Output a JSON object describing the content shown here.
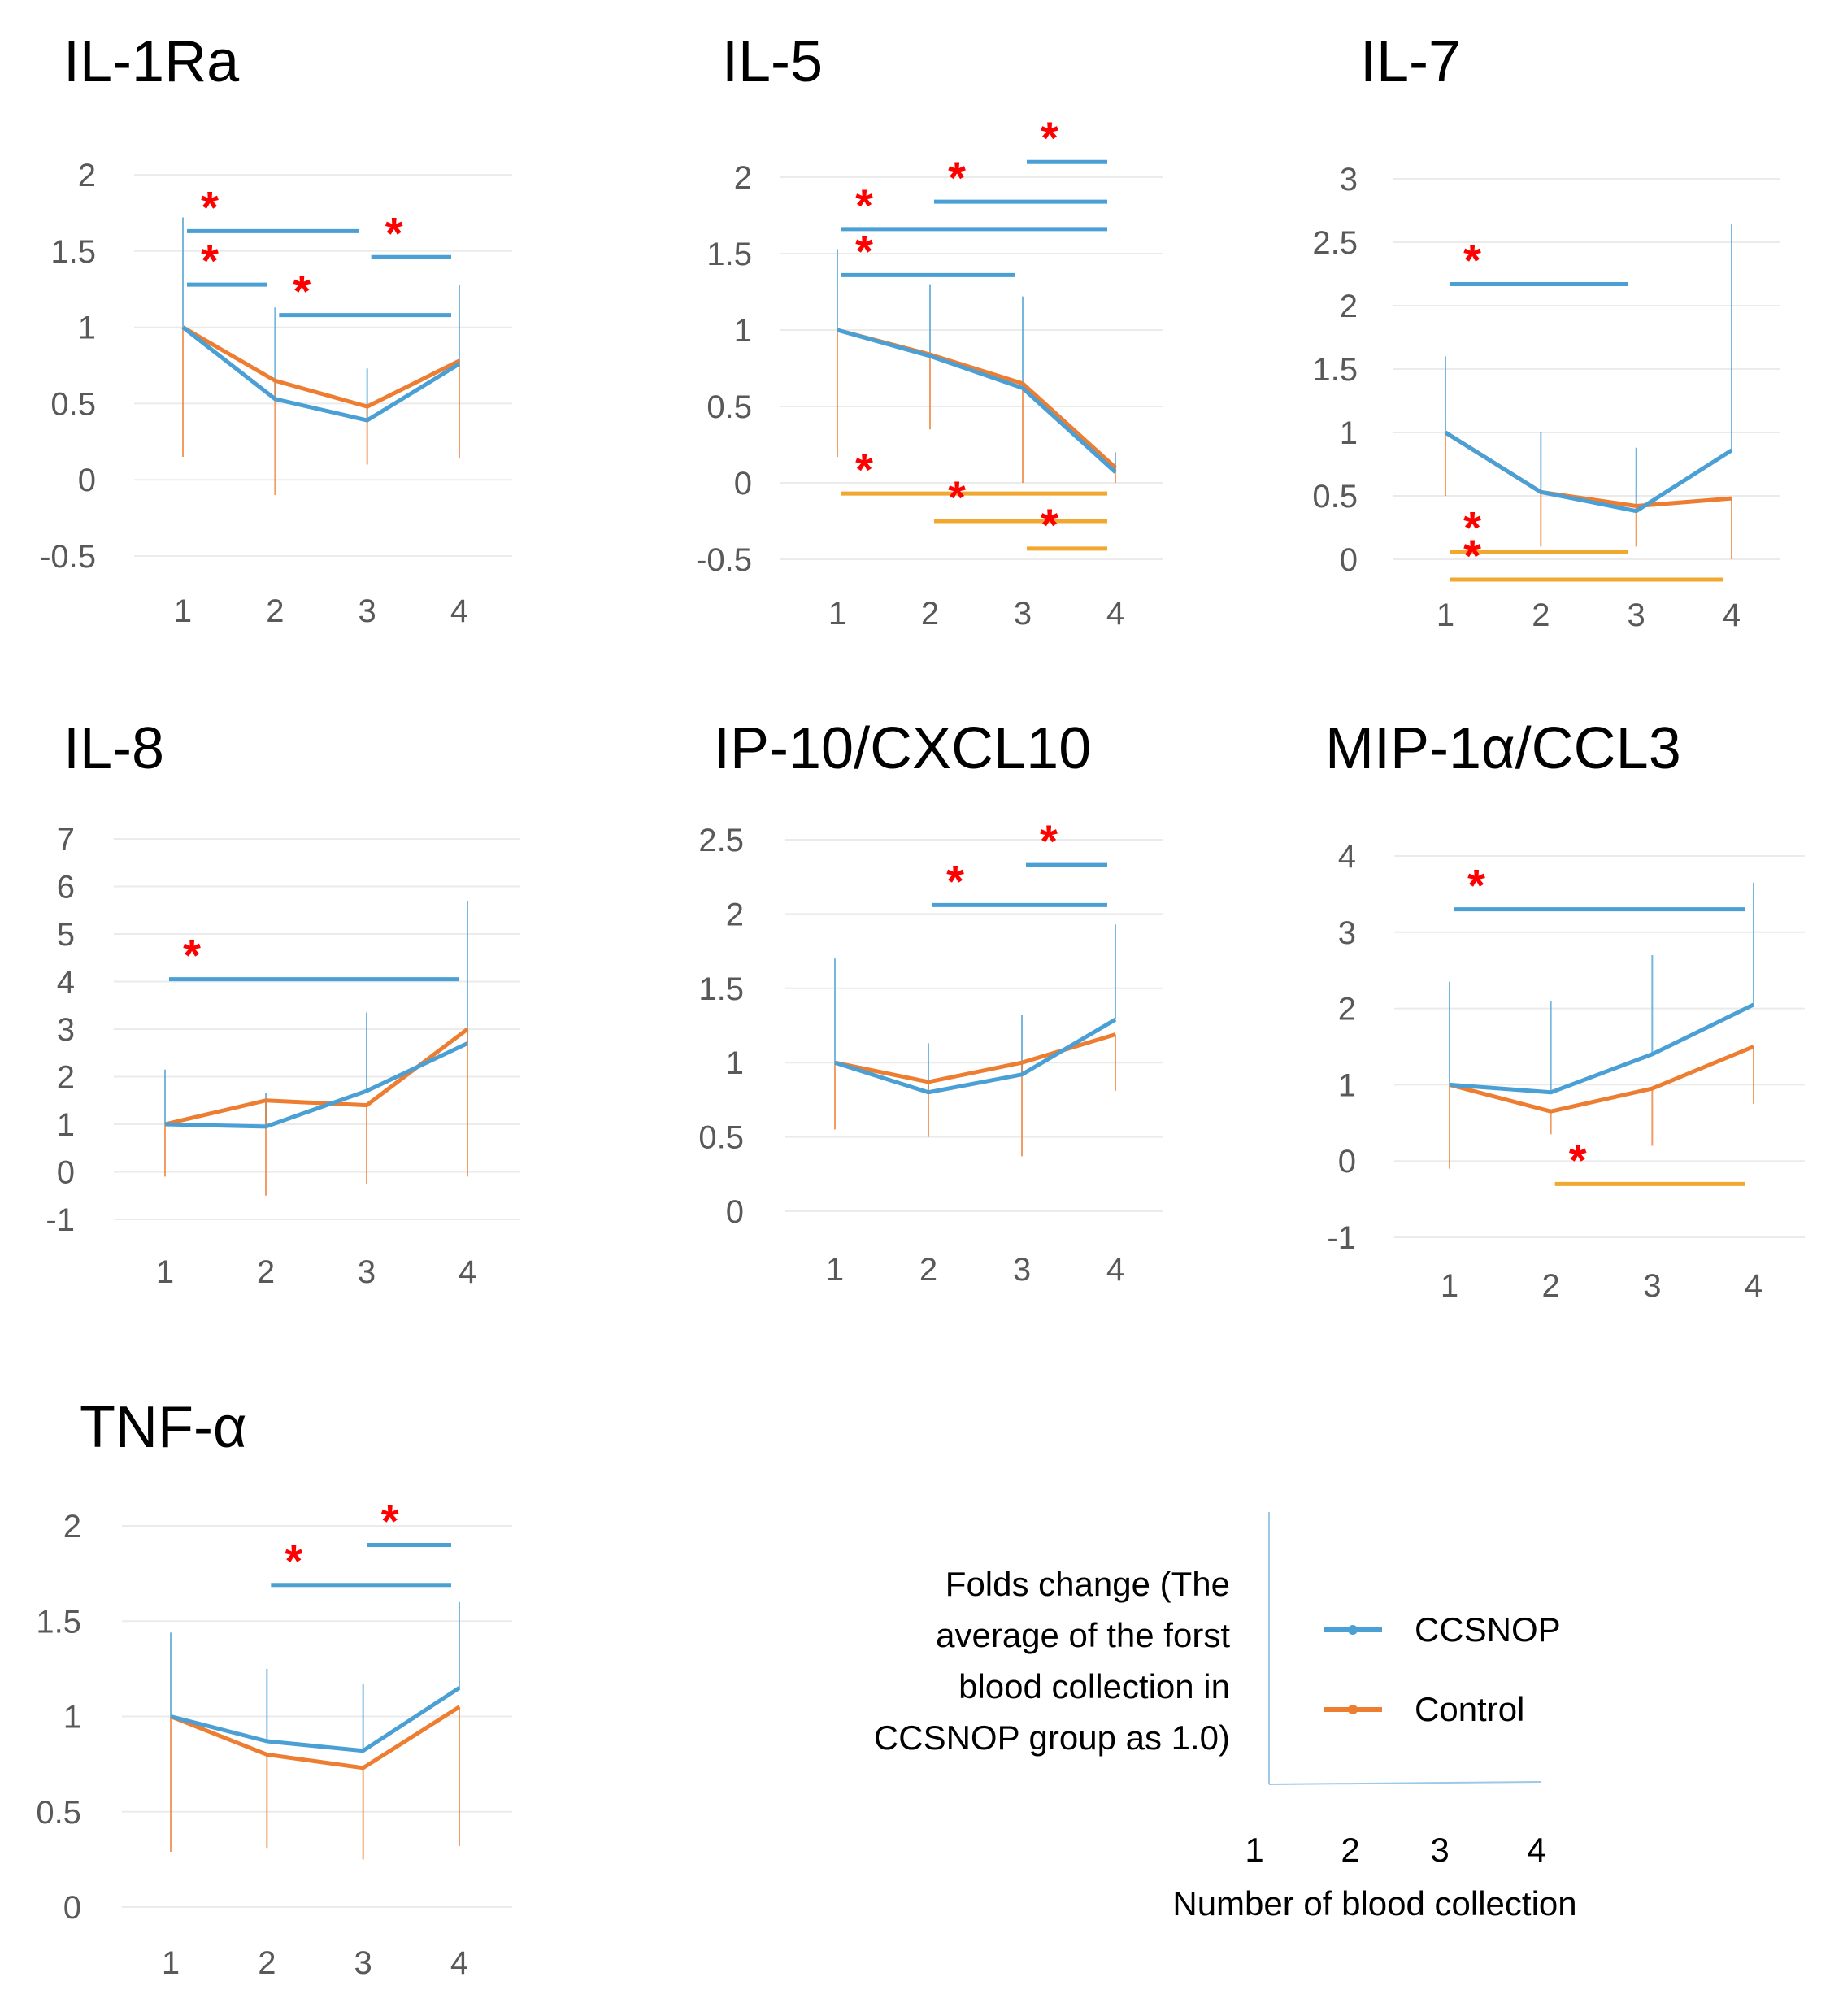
{
  "figure": {
    "legend": {
      "ylabel_lines": [
        "Folds change (The",
        "average of the forst",
        "blood collection in",
        "CCSNOP group as 1.0)"
      ],
      "xlabel": "Number of blood collection",
      "x_ticks": [
        "1",
        "2",
        "3",
        "4"
      ],
      "entries": [
        {
          "name": "CCSNOP",
          "color": "#4a9fd5"
        },
        {
          "name": "Control",
          "color": "#ed7d31"
        }
      ]
    }
  },
  "chart_data": [
    {
      "type": "line",
      "title": "IL-1Ra",
      "categories": [
        "1",
        "2",
        "3",
        "4"
      ],
      "y_ticks": [
        "2",
        "1.5",
        "1",
        "0.5",
        "0",
        "-0.5"
      ],
      "ylim": [
        -0.5,
        2
      ],
      "series": [
        {
          "name": "CCSNOP",
          "values": [
            1.0,
            0.53,
            0.39,
            0.76
          ],
          "err_high": [
            1.72,
            1.13,
            0.73,
            1.28
          ]
        },
        {
          "name": "Control",
          "values": [
            1.0,
            0.65,
            0.48,
            0.78
          ],
          "err_low": [
            0.15,
            -0.1,
            0.1,
            0.14
          ]
        }
      ],
      "significance": [
        {
          "from": 1,
          "to": 3,
          "series": "CCSNOP",
          "level": 1.63,
          "label": "*"
        },
        {
          "from": 3,
          "to": 4,
          "series": "CCSNOP",
          "level": 1.46,
          "label": "*"
        },
        {
          "from": 1,
          "to": 2,
          "series": "CCSNOP",
          "level": 1.28,
          "label": "*"
        },
        {
          "from": 2,
          "to": 4,
          "series": "CCSNOP",
          "level": 1.08,
          "label": "*"
        }
      ]
    },
    {
      "type": "line",
      "title": "IL-5",
      "categories": [
        "1",
        "2",
        "3",
        "4"
      ],
      "y_ticks": [
        "2",
        "1.5",
        "1",
        "0.5",
        "0",
        "-0.5"
      ],
      "ylim": [
        -0.5,
        2
      ],
      "series": [
        {
          "name": "CCSNOP",
          "values": [
            1.0,
            0.83,
            0.62,
            0.07
          ],
          "err_high": [
            1.53,
            1.3,
            1.22,
            0.2
          ]
        },
        {
          "name": "Control",
          "values": [
            1.0,
            0.84,
            0.65,
            0.1
          ],
          "err_low": [
            0.17,
            0.35,
            0.0,
            0.0
          ]
        }
      ],
      "significance": [
        {
          "from": 3,
          "to": 4,
          "series": "CCSNOP",
          "level": 2.1,
          "label": "*"
        },
        {
          "from": 2,
          "to": 4,
          "series": "CCSNOP",
          "level": 1.84,
          "label": "*"
        },
        {
          "from": 1,
          "to": 4,
          "series": "CCSNOP",
          "level": 1.66,
          "label": "*"
        },
        {
          "from": 1,
          "to": 3,
          "series": "CCSNOP",
          "level": 1.36,
          "label": "*"
        },
        {
          "from": 1,
          "to": 4,
          "series": "Control",
          "level": -0.07,
          "label": "*"
        },
        {
          "from": 2,
          "to": 4,
          "series": "Control",
          "level": -0.25,
          "label": "*"
        },
        {
          "from": 3,
          "to": 4,
          "series": "Control",
          "level": -0.43,
          "label": "*"
        }
      ]
    },
    {
      "type": "line",
      "title": "IL-7",
      "categories": [
        "1",
        "2",
        "3",
        "4"
      ],
      "y_ticks": [
        "3",
        "2.5",
        "2",
        "1.5",
        "1",
        "0.5",
        "0"
      ],
      "ylim": [
        0,
        3
      ],
      "series": [
        {
          "name": "CCSNOP",
          "values": [
            1.0,
            0.53,
            0.38,
            0.86
          ],
          "err_high": [
            1.6,
            1.0,
            0.88,
            2.64
          ]
        },
        {
          "name": "Control",
          "values": [
            1.0,
            0.53,
            0.42,
            0.48
          ],
          "err_low": [
            0.5,
            0.1,
            0.1,
            0.0
          ]
        }
      ],
      "significance": [
        {
          "from": 1,
          "to": 3,
          "series": "CCSNOP",
          "level": 2.17,
          "label": "*"
        },
        {
          "from": 1,
          "to": 3,
          "series": "Control",
          "level": 0.06,
          "label": "*"
        },
        {
          "from": 1,
          "to": 4,
          "series": "Control",
          "level": -0.16,
          "label": "*"
        }
      ]
    },
    {
      "type": "line",
      "title": "IL-8",
      "categories": [
        "1",
        "2",
        "3",
        "4"
      ],
      "y_ticks": [
        "7",
        "6",
        "5",
        "4",
        "3",
        "2",
        "1",
        "0",
        "-1"
      ],
      "ylim": [
        -1,
        7
      ],
      "series": [
        {
          "name": "CCSNOP",
          "values": [
            1.0,
            0.95,
            1.7,
            2.7
          ],
          "err_high": [
            2.15,
            1.65,
            3.35,
            5.7
          ]
        },
        {
          "name": "Control",
          "values": [
            1.0,
            1.5,
            1.4,
            3.0
          ],
          "err_low": [
            -0.1,
            -0.5,
            -0.25,
            -0.1
          ]
        }
      ],
      "significance": [
        {
          "from": 1,
          "to": 4,
          "series": "CCSNOP",
          "level": 4.05,
          "label": "*"
        }
      ]
    },
    {
      "type": "line",
      "title": "IP-10/CXCL10",
      "categories": [
        "1",
        "2",
        "3",
        "4"
      ],
      "y_ticks": [
        "2.5",
        "2",
        "1.5",
        "1",
        "0.5",
        "0"
      ],
      "ylim": [
        0,
        2.5
      ],
      "series": [
        {
          "name": "CCSNOP",
          "values": [
            1.0,
            0.8,
            0.92,
            1.29
          ],
          "err_high": [
            1.7,
            1.13,
            1.32,
            1.93
          ]
        },
        {
          "name": "Control",
          "values": [
            1.0,
            0.87,
            1.0,
            1.19
          ],
          "err_low": [
            0.55,
            0.5,
            0.37,
            0.81
          ]
        }
      ],
      "significance": [
        {
          "from": 3,
          "to": 4,
          "series": "CCSNOP",
          "level": 2.33,
          "label": "*"
        },
        {
          "from": 2,
          "to": 4,
          "series": "CCSNOP",
          "level": 2.06,
          "label": "*"
        }
      ]
    },
    {
      "type": "line",
      "title": "MIP-1α/CCL3",
      "categories": [
        "1",
        "2",
        "3",
        "4"
      ],
      "y_ticks": [
        "4",
        "3",
        "2",
        "1",
        "0",
        "-1"
      ],
      "ylim": [
        -1,
        4
      ],
      "series": [
        {
          "name": "CCSNOP",
          "values": [
            1.0,
            0.9,
            1.4,
            2.05
          ],
          "err_high": [
            2.35,
            2.1,
            2.7,
            3.65
          ]
        },
        {
          "name": "Control",
          "values": [
            1.0,
            0.65,
            0.95,
            1.5
          ],
          "err_low": [
            -0.1,
            0.35,
            0.2,
            0.75
          ]
        }
      ],
      "significance": [
        {
          "from": 1,
          "to": 4,
          "series": "CCSNOP",
          "level": 3.3,
          "label": "*"
        },
        {
          "from": 2,
          "to": 4,
          "series": "Control",
          "level": -0.3,
          "label": "*"
        }
      ]
    },
    {
      "type": "line",
      "title": "TNF-α",
      "categories": [
        "1",
        "2",
        "3",
        "4"
      ],
      "y_ticks": [
        "2",
        "1.5",
        "1",
        "0.5",
        "0"
      ],
      "ylim": [
        0,
        2
      ],
      "series": [
        {
          "name": "CCSNOP",
          "values": [
            1.0,
            0.87,
            0.82,
            1.15
          ],
          "err_high": [
            1.44,
            1.25,
            1.17,
            1.6
          ]
        },
        {
          "name": "Control",
          "values": [
            1.0,
            0.8,
            0.73,
            1.05
          ],
          "err_low": [
            0.29,
            0.31,
            0.25,
            0.32
          ]
        }
      ],
      "significance": [
        {
          "from": 3,
          "to": 4,
          "series": "CCSNOP",
          "level": 1.9,
          "label": "*"
        },
        {
          "from": 2,
          "to": 4,
          "series": "CCSNOP",
          "level": 1.69,
          "label": "*"
        }
      ]
    }
  ]
}
